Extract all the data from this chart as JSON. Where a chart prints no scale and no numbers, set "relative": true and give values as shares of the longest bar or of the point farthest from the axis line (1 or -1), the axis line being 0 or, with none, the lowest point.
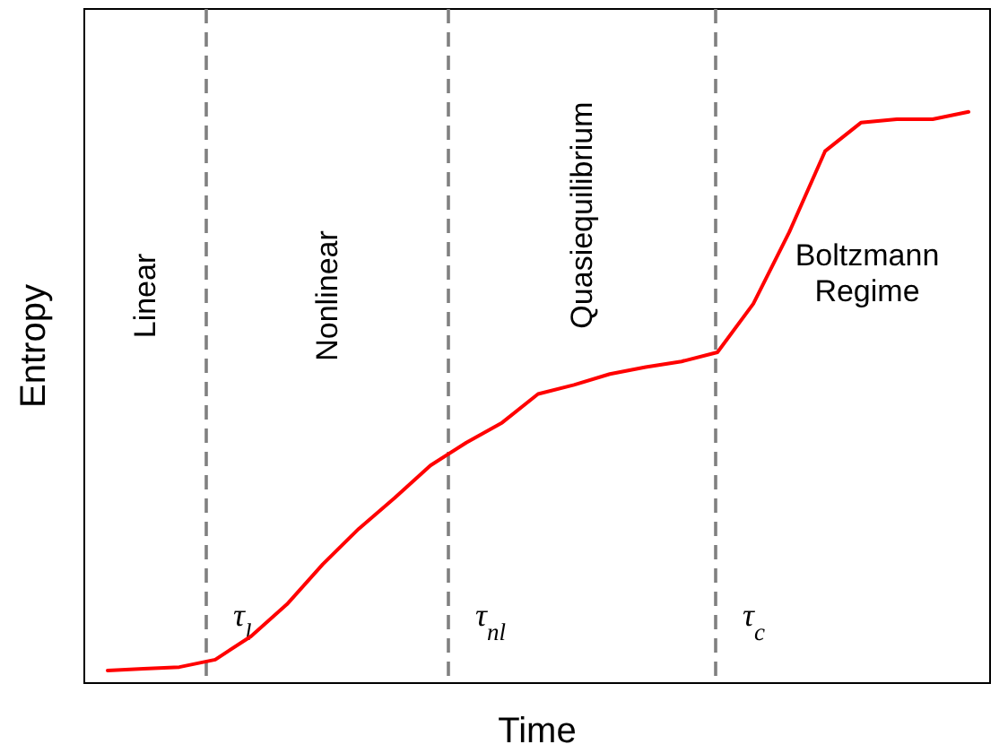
{
  "chart_data": {
    "type": "line",
    "relative": true,
    "xlabel": "Time",
    "ylabel": "Entropy",
    "marker": "none",
    "line_style": "solid",
    "categories": [
      null,
      null,
      null,
      null,
      null,
      null,
      null,
      null,
      null,
      null,
      null,
      null,
      null,
      null,
      null,
      null,
      null,
      null,
      null,
      null,
      null,
      null,
      null,
      null,
      null
    ],
    "series": [
      {
        "color": "#ff0000",
        "values": [
          0.022,
          0.025,
          0.028,
          0.041,
          0.082,
          0.138,
          0.208,
          0.27,
          0.324,
          0.381,
          0.421,
          0.456,
          0.506,
          0.522,
          0.541,
          0.553,
          0.563,
          0.579,
          0.664,
          0.789,
          0.931,
          0.981,
          0.987,
          0.987,
          1
        ]
      }
    ],
    "annotations": [
      "Linear",
      "Nonlinear",
      "Quasiequilibrium",
      "Boltzmann Regime",
      "τ$_{l}$",
      "τ$_{nl}$",
      "τ$_{c}$"
    ]
  }
}
